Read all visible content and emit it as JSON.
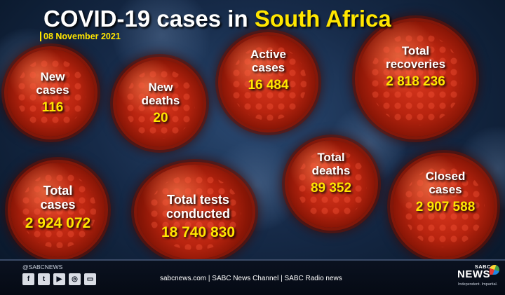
{
  "header": {
    "title_main": "COVID-19 cases in ",
    "title_highlight": "South Africa",
    "date": "08 November 2021"
  },
  "stats": {
    "new_cases": {
      "label": "New\ncases",
      "value": "116"
    },
    "new_deaths": {
      "label": "New\ndeaths",
      "value": "20"
    },
    "active_cases": {
      "label": "Active\ncases",
      "value": "16 484"
    },
    "total_recoveries": {
      "label": "Total\nrecoveries",
      "value": "2 818 236"
    },
    "total_cases": {
      "label": "Total\ncases",
      "value": "2 924 072"
    },
    "total_tests": {
      "label": "Total tests\nconducted",
      "value": "18 740 830"
    },
    "total_deaths": {
      "label": "Total\ndeaths",
      "value": "89 352"
    },
    "closed_cases": {
      "label": "Closed\ncases",
      "value": "2 907 588"
    }
  },
  "footer": {
    "handle": "@SABCNEWS",
    "social_icons": [
      {
        "name": "facebook-icon",
        "glyph": "f"
      },
      {
        "name": "twitter-icon",
        "glyph": "t"
      },
      {
        "name": "youtube-icon",
        "glyph": "▶"
      },
      {
        "name": "instagram-icon",
        "glyph": "◎"
      },
      {
        "name": "video-icon",
        "glyph": "▭"
      }
    ],
    "links": "sabcnews.com | SABC News Channel | SABC Radio news",
    "logo": {
      "top": "SABC",
      "main": "NEWS",
      "tagline": "Independent. Impartial."
    }
  },
  "colors": {
    "accent": "#ffe600",
    "virus": "#c22a12",
    "background": "#162a48"
  }
}
